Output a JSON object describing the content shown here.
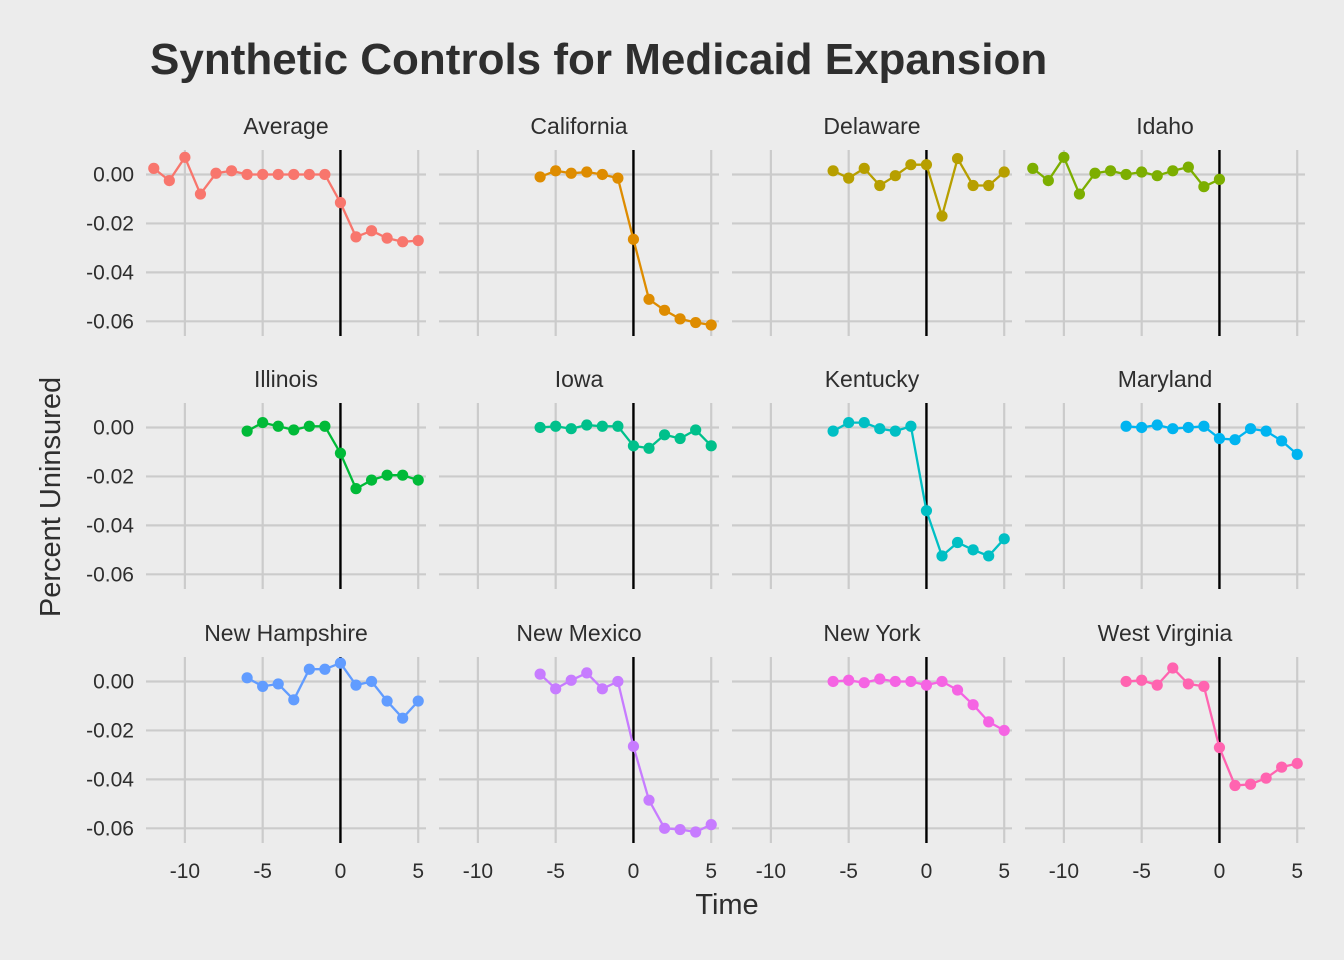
{
  "chart_data": {
    "type": "line",
    "title": "Synthetic Controls for Medicaid Expansion",
    "xlabel": "Time",
    "ylabel": "Percent Uninsured",
    "xlim": [
      -12.5,
      5.5
    ],
    "ylim": [
      -0.066,
      0.01
    ],
    "x_ticks": [
      -10,
      -5,
      0,
      5
    ],
    "x_tick_labels": [
      "-10",
      "-5",
      "0",
      "5"
    ],
    "y_ticks": [
      0,
      -0.02,
      -0.04,
      -0.06
    ],
    "y_tick_labels": [
      "0.00",
      "-0.02",
      "-0.04",
      "-0.06"
    ],
    "vline_x": 0,
    "grid": true,
    "legend": "none",
    "panels": [
      {
        "name": "Average",
        "color": "#F8766D",
        "x": [
          -12,
          -11,
          -10,
          -9,
          -8,
          -7,
          -6,
          -5,
          -4,
          -3,
          -2,
          -1,
          0,
          1,
          2,
          3,
          4,
          5
        ],
        "y": [
          0.0025,
          -0.0025,
          0.007,
          -0.008,
          0.0005,
          0.0015,
          0,
          0,
          0,
          0,
          0,
          0,
          -0.0115,
          -0.0255,
          -0.023,
          -0.026,
          -0.0275,
          -0.027
        ]
      },
      {
        "name": "California",
        "color": "#DE8C00",
        "x": [
          -6,
          -5,
          -4,
          -3,
          -2,
          -1,
          0,
          1,
          2,
          3,
          4,
          5
        ],
        "y": [
          -0.001,
          0.0015,
          0.0005,
          0.001,
          0,
          -0.0015,
          -0.0265,
          -0.051,
          -0.0555,
          -0.059,
          -0.0605,
          -0.0615
        ]
      },
      {
        "name": "Delaware",
        "color": "#B79F00",
        "x": [
          -6,
          -5,
          -4,
          -3,
          -2,
          -1,
          0,
          1,
          2,
          3,
          4,
          5
        ],
        "y": [
          0.0015,
          -0.0015,
          0.0025,
          -0.0045,
          -0.0005,
          0.004,
          0.004,
          -0.017,
          0.0065,
          -0.0045,
          -0.0045,
          0.001
        ]
      },
      {
        "name": "Idaho",
        "color": "#7CAE00",
        "x": [
          -12,
          -11,
          -10,
          -9,
          -8,
          -7,
          -6,
          -5,
          -4,
          -3,
          -2,
          -1,
          0
        ],
        "y": [
          0.0025,
          -0.0025,
          0.007,
          -0.008,
          0.0005,
          0.0015,
          0,
          0.001,
          -0.0005,
          0.0015,
          0.003,
          -0.005,
          -0.002
        ]
      },
      {
        "name": "Illinois",
        "color": "#00BA38",
        "x": [
          -6,
          -5,
          -4,
          -3,
          -2,
          -1,
          0,
          1,
          2,
          3,
          4,
          5
        ],
        "y": [
          -0.0015,
          0.002,
          0.0005,
          -0.001,
          0.0005,
          0.0005,
          -0.0105,
          -0.025,
          -0.0215,
          -0.0195,
          -0.0195,
          -0.0215
        ]
      },
      {
        "name": "Iowa",
        "color": "#00C08B",
        "x": [
          -6,
          -5,
          -4,
          -3,
          -2,
          -1,
          0,
          1,
          2,
          3,
          4,
          5
        ],
        "y": [
          0,
          0.0005,
          -0.0005,
          0.001,
          0.0005,
          0.0005,
          -0.0075,
          -0.0085,
          -0.003,
          -0.0045,
          -0.001,
          -0.0075
        ]
      },
      {
        "name": "Kentucky",
        "color": "#00BFC4",
        "x": [
          -6,
          -5,
          -4,
          -3,
          -2,
          -1,
          0,
          1,
          2,
          3,
          4,
          5
        ],
        "y": [
          -0.0015,
          0.002,
          0.002,
          -0.0005,
          -0.0015,
          0.0005,
          -0.034,
          -0.0525,
          -0.047,
          -0.05,
          -0.0525,
          -0.0455
        ]
      },
      {
        "name": "Maryland",
        "color": "#00B4F0",
        "x": [
          -6,
          -5,
          -4,
          -3,
          -2,
          -1,
          0,
          1,
          2,
          3,
          4,
          5
        ],
        "y": [
          0.0005,
          0,
          0.001,
          -0.0005,
          0,
          0.0005,
          -0.0045,
          -0.005,
          -0.0005,
          -0.0015,
          -0.0055,
          -0.011
        ]
      },
      {
        "name": "New Hampshire",
        "color": "#619CFF",
        "x": [
          -6,
          -5,
          -4,
          -3,
          -2,
          -1,
          0,
          1,
          2,
          3,
          4,
          5
        ],
        "y": [
          0.0015,
          -0.002,
          -0.001,
          -0.0075,
          0.005,
          0.005,
          0.0075,
          -0.0015,
          0,
          -0.008,
          -0.015,
          -0.008
        ]
      },
      {
        "name": "New Mexico",
        "color": "#C77CFF",
        "x": [
          -6,
          -5,
          -4,
          -3,
          -2,
          -1,
          0,
          1,
          2,
          3,
          4,
          5
        ],
        "y": [
          0.003,
          -0.003,
          0.0005,
          0.0035,
          -0.003,
          0,
          -0.0265,
          -0.0485,
          -0.06,
          -0.0605,
          -0.0615,
          -0.0585
        ]
      },
      {
        "name": "New York",
        "color": "#F564E3",
        "x": [
          -6,
          -5,
          -4,
          -3,
          -2,
          -1,
          0,
          1,
          2,
          3,
          4,
          5
        ],
        "y": [
          0,
          0.0005,
          -0.0005,
          0.001,
          0,
          0,
          -0.0015,
          0,
          -0.0035,
          -0.0095,
          -0.0165,
          -0.02
        ]
      },
      {
        "name": "West Virginia",
        "color": "#FF64B0",
        "x": [
          -6,
          -5,
          -4,
          -3,
          -2,
          -1,
          0,
          1,
          2,
          3,
          4,
          5
        ],
        "y": [
          0,
          0.0005,
          -0.0015,
          0.0055,
          -0.001,
          -0.002,
          -0.027,
          -0.0425,
          -0.042,
          -0.0395,
          -0.035,
          -0.0335
        ]
      }
    ]
  }
}
